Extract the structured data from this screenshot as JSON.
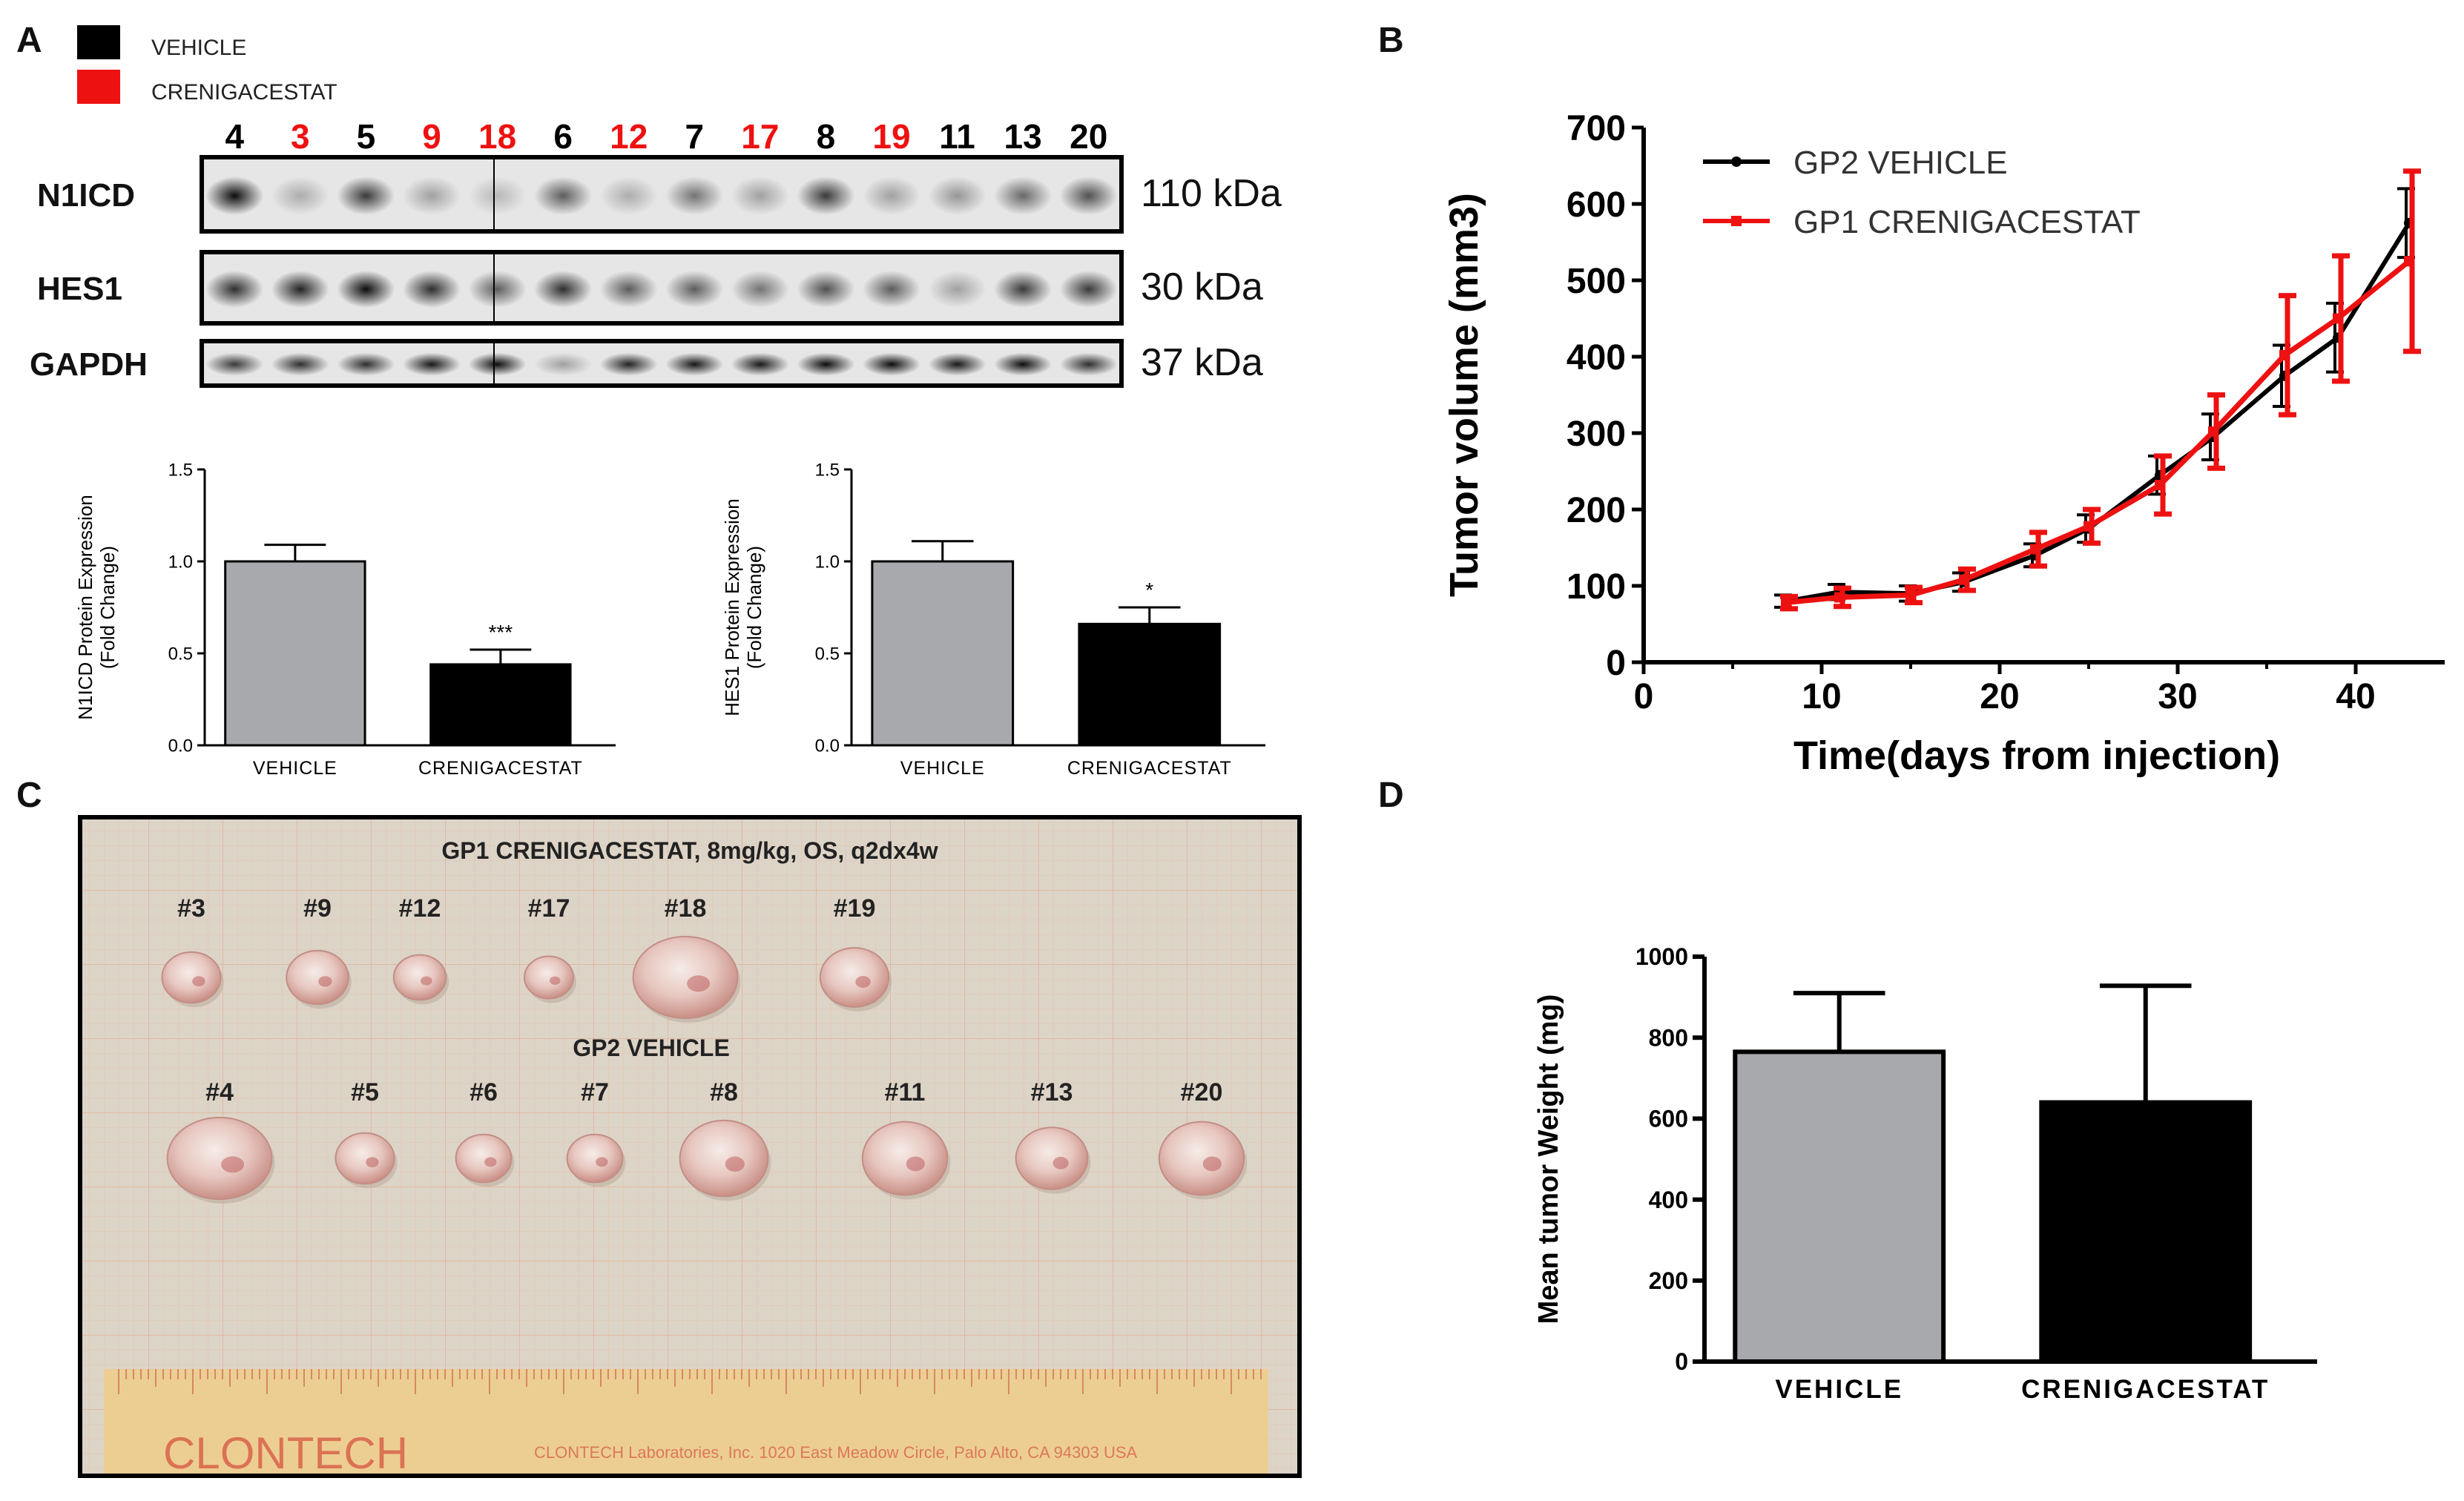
{
  "panels": {
    "A": "A",
    "B": "B",
    "C": "C",
    "D": "D"
  },
  "colors": {
    "vehicle": "#000000",
    "crenigacestat": "#ee1111",
    "bar_gray": "#a7a9ac",
    "bar_black": "#000000",
    "photo_bg": "#ddd4c8",
    "ruler": "#e8c78a"
  },
  "panelA": {
    "legend": [
      {
        "label": "VEHICLE",
        "color": "#000000"
      },
      {
        "label": "CRENIGACESTAT",
        "color": "#ee1111"
      }
    ],
    "lanes": [
      {
        "id": "4",
        "group": "vehicle"
      },
      {
        "id": "3",
        "group": "crenigacestat"
      },
      {
        "id": "5",
        "group": "vehicle"
      },
      {
        "id": "9",
        "group": "crenigacestat"
      },
      {
        "id": "18",
        "group": "crenigacestat"
      },
      {
        "id": "6",
        "group": "vehicle"
      },
      {
        "id": "12",
        "group": "crenigacestat"
      },
      {
        "id": "7",
        "group": "vehicle"
      },
      {
        "id": "17",
        "group": "crenigacestat"
      },
      {
        "id": "8",
        "group": "vehicle"
      },
      {
        "id": "19",
        "group": "crenigacestat"
      },
      {
        "id": "11",
        "group": "vehicle"
      },
      {
        "id": "13",
        "group": "vehicle"
      },
      {
        "id": "20",
        "group": "vehicle"
      }
    ],
    "blots": [
      {
        "protein": "N1ICD",
        "size": "110 kDa",
        "intensity": [
          0.95,
          0.25,
          0.75,
          0.3,
          0.2,
          0.6,
          0.25,
          0.5,
          0.3,
          0.75,
          0.3,
          0.35,
          0.55,
          0.65
        ]
      },
      {
        "protein": "HES1",
        "size": "30 kDa",
        "intensity": [
          0.8,
          0.85,
          0.95,
          0.8,
          0.6,
          0.8,
          0.6,
          0.6,
          0.5,
          0.65,
          0.6,
          0.3,
          0.75,
          0.75
        ]
      },
      {
        "protein": "GAPDH",
        "size": "37 kDa",
        "intensity": [
          0.75,
          0.8,
          0.8,
          0.9,
          0.95,
          0.3,
          0.85,
          0.9,
          0.9,
          0.95,
          0.95,
          0.9,
          0.95,
          0.8
        ]
      }
    ]
  },
  "chart_data": [
    {
      "id": "A-left",
      "type": "bar",
      "categories": [
        "VEHICLE",
        "CRENIGACESTAT"
      ],
      "values": [
        1.0,
        0.44
      ],
      "errors": [
        0.09,
        0.08
      ],
      "ylabel": "N1ICD Protein Expression",
      "ylabel2": "(Fold Change)",
      "ylim": [
        0,
        1.5
      ],
      "yticks": [
        "0.0",
        "0.5",
        "1.0",
        "1.5"
      ],
      "annotations": [
        "",
        "***"
      ]
    },
    {
      "id": "A-right",
      "type": "bar",
      "categories": [
        "VEHICLE",
        "CRENIGACESTAT"
      ],
      "values": [
        1.0,
        0.66
      ],
      "errors": [
        0.11,
        0.09
      ],
      "ylabel": "HES1 Protein Expression",
      "ylabel2": "(Fold Change)",
      "ylim": [
        0,
        1.5
      ],
      "yticks": [
        "0.0",
        "0.5",
        "1.0",
        "1.5"
      ],
      "annotations": [
        "",
        "*"
      ]
    },
    {
      "id": "B",
      "type": "line",
      "xlabel": "Time(days from injection)",
      "ylabel": "Tumor volume (mm3)",
      "xlim": [
        0,
        45
      ],
      "ylim": [
        0,
        700
      ],
      "xticks": [
        "0",
        "10",
        "20",
        "30",
        "40"
      ],
      "yticks": [
        "0",
        "100",
        "200",
        "300",
        "400",
        "500",
        "600",
        "700"
      ],
      "x": [
        8,
        11,
        15,
        18,
        22,
        25,
        29,
        32,
        36,
        39,
        43
      ],
      "series": [
        {
          "name": "GP2 VEHICLE",
          "color": "#000000",
          "values": [
            80,
            92,
            90,
            105,
            140,
            175,
            245,
            295,
            375,
            425,
            575
          ],
          "errors": [
            8,
            10,
            10,
            12,
            15,
            18,
            25,
            30,
            40,
            45,
            45
          ]
        },
        {
          "name": "GP1 CRENIGACESTAT",
          "color": "#ee1111",
          "values": [
            78,
            85,
            88,
            108,
            148,
            178,
            232,
            302,
            402,
            450,
            525
          ],
          "errors": [
            8,
            12,
            10,
            14,
            22,
            22,
            38,
            48,
            78,
            82,
            118
          ]
        }
      ]
    },
    {
      "id": "D",
      "type": "bar",
      "categories": [
        "VEHICLE",
        "CRENIGACESTAT"
      ],
      "values": [
        765,
        640
      ],
      "errors": [
        145,
        288
      ],
      "ylabel": "Mean tumor Weight (mg)",
      "ylim": [
        0,
        1000
      ],
      "yticks": [
        "0",
        "200",
        "400",
        "600",
        "800",
        "1000"
      ]
    }
  ],
  "panelC": {
    "title": "GP1 CRENIGACESTAT, 8mg/kg, OS, q2dx4w",
    "group2_label": "GP2 VEHICLE",
    "row1": [
      {
        "label": "#3",
        "size": 0.9
      },
      {
        "label": "#9",
        "size": 0.95
      },
      {
        "label": "#12",
        "size": 0.8
      },
      {
        "label": "#17",
        "size": 0.75
      },
      {
        "label": "#18",
        "size": 1.6
      },
      {
        "label": "#19",
        "size": 1.05
      }
    ],
    "row2": [
      {
        "label": "#4",
        "size": 1.6
      },
      {
        "label": "#5",
        "size": 0.9
      },
      {
        "label": "#6",
        "size": 0.85
      },
      {
        "label": "#7",
        "size": 0.85
      },
      {
        "label": "#8",
        "size": 1.35
      },
      {
        "label": "#11",
        "size": 1.3
      },
      {
        "label": "#13",
        "size": 1.1
      },
      {
        "label": "#20",
        "size": 1.3
      }
    ],
    "ruler_text": "CLONTECH",
    "ruler_subtext": "CLONTECH Laboratories, Inc. 1020 East Meadow Circle, Palo Alto, CA 94303 USA"
  }
}
